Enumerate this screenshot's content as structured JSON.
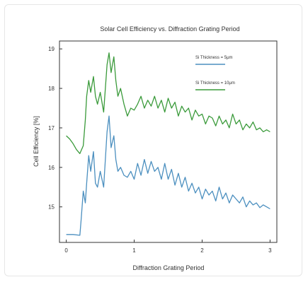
{
  "chart_data": {
    "type": "line",
    "title": "Solar Cell Efficiency vs. Diffraction Grating Period",
    "xlabel": "Diffraction Grating Period",
    "ylabel": "Cell Efficiency [%]",
    "xlim": [
      -0.1,
      3.1
    ],
    "ylim": [
      14.1,
      19.2
    ],
    "xticks": [
      0,
      1,
      2,
      3
    ],
    "yticks": [
      15,
      16,
      17,
      18,
      19
    ],
    "grid": false,
    "legend_position": "top-right",
    "colors": {
      "thick": "#3a9a3a",
      "thin": "#4b8fbf",
      "axis": "#333333"
    },
    "series": [
      {
        "name": "Si Thickness = 10μm",
        "color": "#3a9a3a",
        "x": [
          0.0,
          0.05,
          0.1,
          0.15,
          0.2,
          0.25,
          0.28,
          0.3,
          0.33,
          0.36,
          0.4,
          0.43,
          0.46,
          0.5,
          0.55,
          0.6,
          0.63,
          0.66,
          0.7,
          0.73,
          0.76,
          0.8,
          0.85,
          0.9,
          0.95,
          1.0,
          1.05,
          1.1,
          1.15,
          1.2,
          1.25,
          1.3,
          1.35,
          1.4,
          1.45,
          1.5,
          1.55,
          1.6,
          1.65,
          1.7,
          1.75,
          1.8,
          1.85,
          1.9,
          1.95,
          2.0,
          2.05,
          2.1,
          2.15,
          2.2,
          2.25,
          2.3,
          2.35,
          2.4,
          2.45,
          2.5,
          2.55,
          2.6,
          2.65,
          2.7,
          2.75,
          2.8,
          2.85,
          2.9,
          2.95,
          3.0
        ],
        "values": [
          16.8,
          16.72,
          16.6,
          16.45,
          16.35,
          16.55,
          17.2,
          17.8,
          18.2,
          17.9,
          18.3,
          17.8,
          17.6,
          17.9,
          17.4,
          18.6,
          18.9,
          18.4,
          18.8,
          18.2,
          17.8,
          18.0,
          17.6,
          17.3,
          17.5,
          17.45,
          17.6,
          17.8,
          17.5,
          17.7,
          17.55,
          17.8,
          17.5,
          17.7,
          17.4,
          17.75,
          17.5,
          17.65,
          17.3,
          17.55,
          17.4,
          17.5,
          17.2,
          17.45,
          17.3,
          17.35,
          17.1,
          17.3,
          17.25,
          17.05,
          17.3,
          17.1,
          17.2,
          17.0,
          17.35,
          17.1,
          17.2,
          16.95,
          17.1,
          17.0,
          17.15,
          16.95,
          17.0,
          16.9,
          16.95,
          16.9
        ]
      },
      {
        "name": "Si Thickness = 5μm",
        "color": "#4b8fbf",
        "x": [
          0.0,
          0.1,
          0.2,
          0.22,
          0.25,
          0.28,
          0.3,
          0.33,
          0.36,
          0.4,
          0.43,
          0.46,
          0.5,
          0.55,
          0.6,
          0.63,
          0.66,
          0.7,
          0.73,
          0.76,
          0.8,
          0.85,
          0.9,
          0.95,
          1.0,
          1.05,
          1.1,
          1.15,
          1.2,
          1.25,
          1.3,
          1.35,
          1.4,
          1.45,
          1.5,
          1.55,
          1.6,
          1.65,
          1.7,
          1.75,
          1.8,
          1.85,
          1.9,
          1.95,
          2.0,
          2.05,
          2.1,
          2.15,
          2.2,
          2.25,
          2.3,
          2.35,
          2.4,
          2.45,
          2.5,
          2.55,
          2.6,
          2.65,
          2.7,
          2.75,
          2.8,
          2.85,
          2.9,
          2.95,
          3.0
        ],
        "values": [
          14.3,
          14.3,
          14.28,
          14.7,
          15.4,
          15.1,
          15.6,
          16.3,
          15.9,
          16.4,
          15.6,
          15.5,
          15.9,
          15.5,
          16.9,
          17.3,
          16.5,
          16.8,
          16.2,
          15.9,
          16.0,
          15.8,
          15.75,
          15.9,
          15.7,
          16.1,
          15.8,
          16.2,
          15.85,
          16.15,
          15.9,
          16.0,
          15.7,
          16.1,
          15.7,
          15.95,
          15.55,
          15.85,
          15.5,
          15.75,
          15.4,
          15.6,
          15.35,
          15.5,
          15.2,
          15.45,
          15.3,
          15.4,
          15.15,
          15.5,
          15.2,
          15.35,
          15.1,
          15.3,
          15.2,
          15.1,
          15.25,
          15.0,
          15.15,
          15.05,
          15.1,
          14.98,
          15.05,
          15.0,
          14.95
        ]
      }
    ]
  }
}
